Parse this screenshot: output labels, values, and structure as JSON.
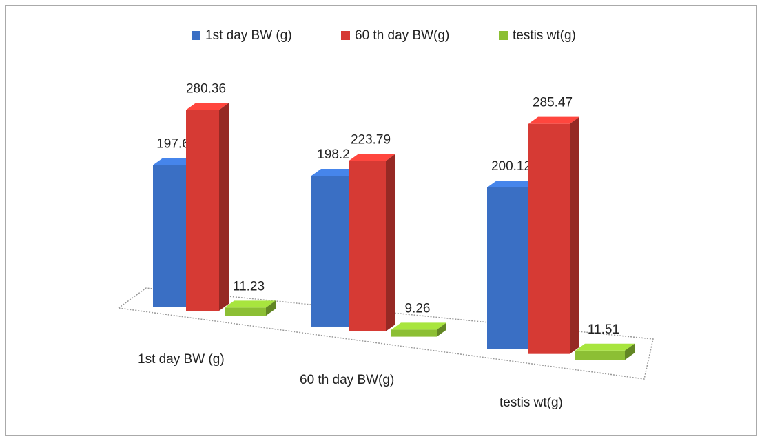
{
  "chart_data": {
    "type": "bar3d",
    "categories": [
      "1st day BW (g)",
      "60 th day BW(g)",
      "testis wt(g)"
    ],
    "series": [
      {
        "name": "1st day BW (g)",
        "color": "#3a6fc4",
        "values": [
          197.6,
          198.2,
          200.12
        ]
      },
      {
        "name": "60 th day BW(g)",
        "color": "#d63a34",
        "values": [
          280.36,
          223.79,
          285.47
        ]
      },
      {
        "name": "testis wt(g)",
        "color": "#8cbf34",
        "values": [
          11.23,
          9.26,
          11.51
        ]
      }
    ],
    "legend": "top"
  }
}
